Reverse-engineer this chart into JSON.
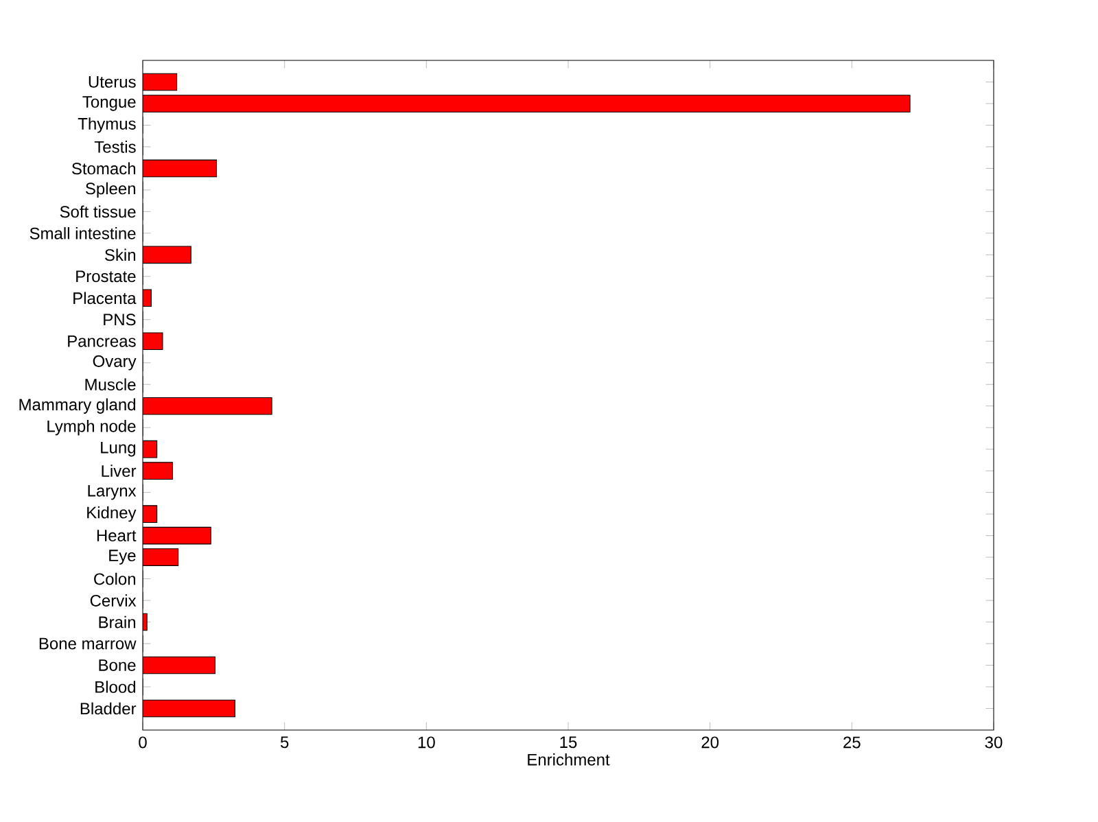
{
  "chart_data": {
    "type": "bar",
    "orientation": "horizontal",
    "xlabel": "Enrichment",
    "color": "#ff0000",
    "categories": [
      "Uterus",
      "Tongue",
      "Thymus",
      "Testis",
      "Stomach",
      "Spleen",
      "Soft tissue",
      "Small intestine",
      "Skin",
      "Prostate",
      "Placenta",
      "PNS",
      "Pancreas",
      "Ovary",
      "Muscle",
      "Mammary gland",
      "Lymph node",
      "Lung",
      "Liver",
      "Larynx",
      "Kidney",
      "Heart",
      "Eye",
      "Colon",
      "Cervix",
      "Brain",
      "Bone marrow",
      "Bone",
      "Blood",
      "Bladder"
    ],
    "values": [
      1.2,
      27.05,
      0,
      0,
      2.6,
      0,
      0,
      0,
      1.7,
      0,
      0.3,
      0,
      0.7,
      0,
      0,
      4.55,
      0,
      0.5,
      1.05,
      0,
      0.5,
      2.4,
      1.25,
      0,
      0,
      0.15,
      0,
      2.55,
      0,
      3.25
    ],
    "xlim": [
      0,
      30
    ],
    "xticks": [
      0,
      5,
      10,
      15,
      20,
      25,
      30
    ]
  }
}
